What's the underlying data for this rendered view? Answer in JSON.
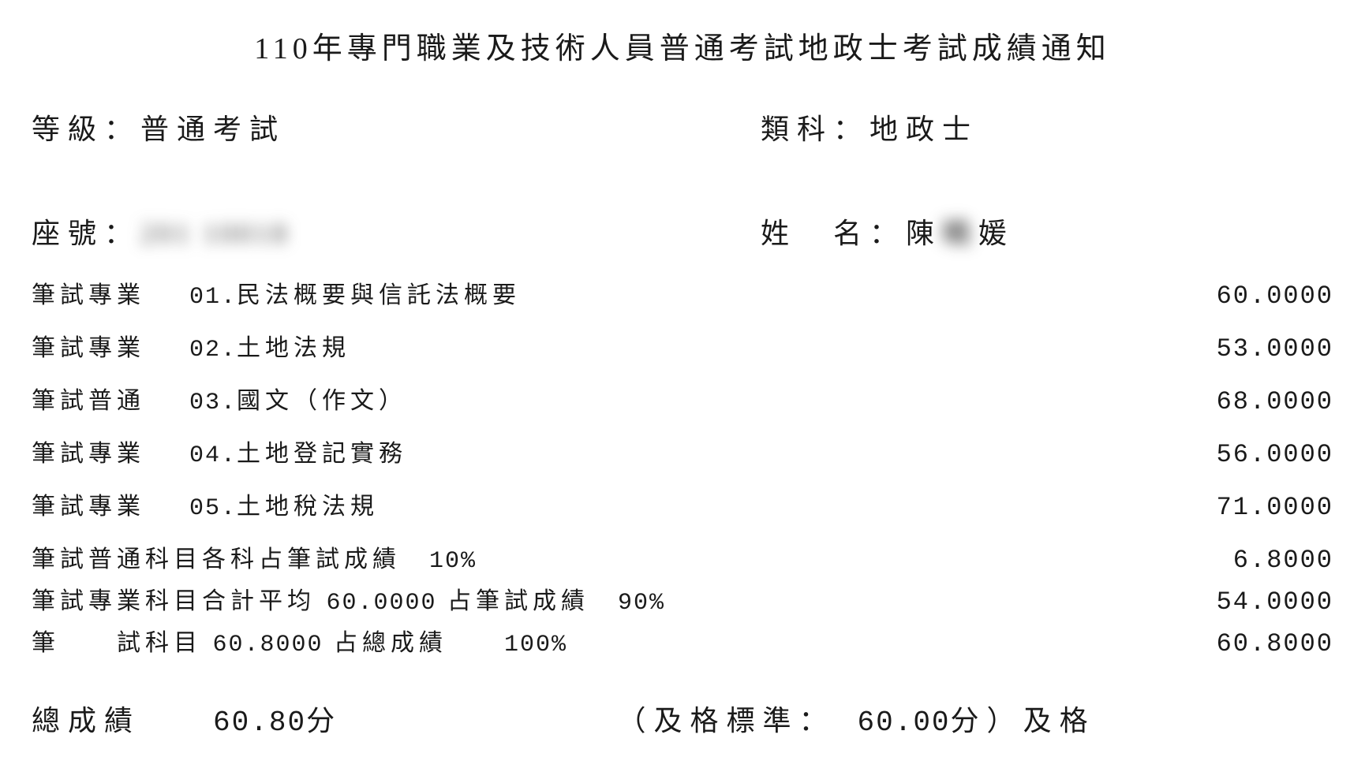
{
  "title": "110年專門職業及技術人員普通考試地政士考試成績通知",
  "header": {
    "level_label": "等級：",
    "level_value": "普通考試",
    "category_label": "類科：",
    "category_value": "地政士",
    "seat_label": "座號：",
    "seat_value_masked": "201 10018",
    "name_label": "姓　名：",
    "name_first": "陳",
    "name_mid_masked": "曉",
    "name_last": "媛"
  },
  "subjects": [
    {
      "type": "筆試專業",
      "code": "01.",
      "name": "民法概要與信託法概要",
      "score": "60.0000"
    },
    {
      "type": "筆試專業",
      "code": "02.",
      "name": "土地法規",
      "score": "53.0000"
    },
    {
      "type": "筆試普通",
      "code": "03.",
      "name": "國文（作文）",
      "score": "68.0000"
    },
    {
      "type": "筆試專業",
      "code": "04.",
      "name": "土地登記實務",
      "score": "56.0000"
    },
    {
      "type": "筆試專業",
      "code": "05.",
      "name": "土地稅法規",
      "score": "71.0000"
    }
  ],
  "calc": {
    "line1_label": "筆試普通科目各科占筆試成績　",
    "line1_pct": "10%",
    "line1_value": "6.8000",
    "line2_prefix": "筆試專業科目合計平均 ",
    "line2_avg": "60.0000",
    "line2_mid": " 占筆試成績　",
    "line2_pct": "90%",
    "line2_value": "54.0000",
    "line3_prefix": "筆　　試科目 ",
    "line3_score": "60.8000",
    "line3_mid": " 占總成績　　",
    "line3_pct": "100%",
    "line3_value": "60.8000"
  },
  "final": {
    "total_label": "總成績",
    "total_value": "60.80",
    "total_unit": "分",
    "pass_prefix": "（及格標準：　",
    "pass_threshold": "60.00",
    "pass_unit": "分）",
    "result": "及格"
  },
  "style": {
    "background": "#ffffff",
    "text_color": "#1a1a1a",
    "title_fontsize": 38,
    "info_fontsize": 36,
    "body_fontsize": 30,
    "score_fontsize": 32
  }
}
